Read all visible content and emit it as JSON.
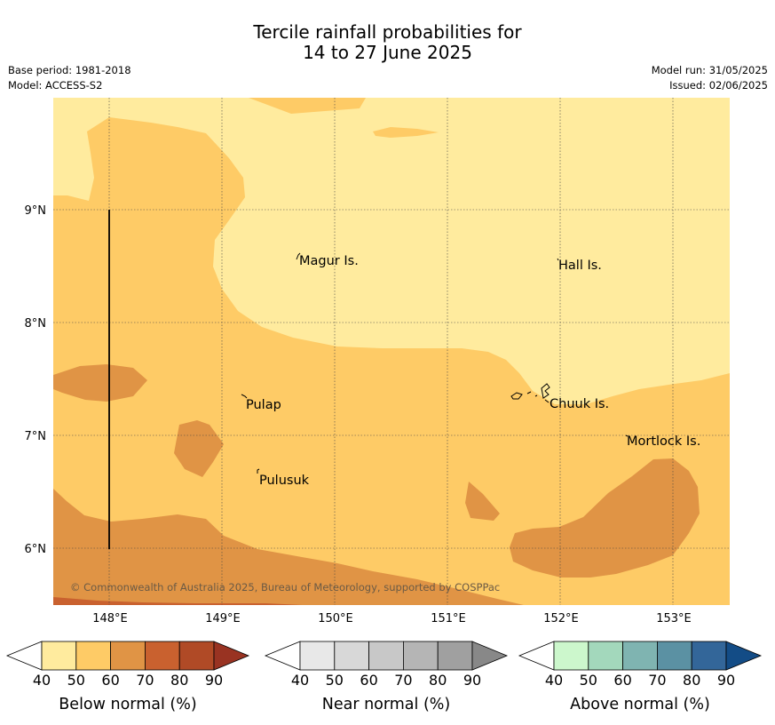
{
  "header": {
    "title_line1": "Tercile rainfall probabilities for",
    "title_line2": "14 to 27 June 2025",
    "base_period": "Base period: 1981-2018",
    "model": "Model: ACCESS-S2",
    "model_run": "Model run: 31/05/2025",
    "issued": "Issued: 02/06/2025"
  },
  "map": {
    "lat_labels": [
      "9°N",
      "8°N",
      "7°N",
      "6°N"
    ],
    "lon_labels": [
      "148°E",
      "149°E",
      "150°E",
      "151°E",
      "152°E",
      "153°E"
    ],
    "places": [
      {
        "name": "Magur Is."
      },
      {
        "name": "Hall Is."
      },
      {
        "name": "Pulap"
      },
      {
        "name": "Chuuk Is."
      },
      {
        "name": "Mortlock Is."
      },
      {
        "name": "Pulusuk"
      }
    ],
    "copyright": "© Commonwealth of Australia 2025, Bureau of Meteorology, supported by COSPPac",
    "colors": {
      "below_40_50": "#ffeb9e",
      "below_50_60": "#fecb66",
      "below_60_70": "#e09445",
      "below_70_80": "#c9612f",
      "below_80_90": "#b04a26",
      "below_90": "#993322"
    }
  },
  "legends": [
    {
      "title": "Below normal (%)",
      "ticks": [
        "40",
        "50",
        "60",
        "70",
        "80",
        "90"
      ],
      "colors": [
        "#ffffff",
        "#ffeb9e",
        "#fecb66",
        "#e09445",
        "#c9612f",
        "#b04a26",
        "#993322"
      ]
    },
    {
      "title": "Near normal (%)",
      "ticks": [
        "40",
        "50",
        "60",
        "70",
        "80",
        "90"
      ],
      "colors": [
        "#ffffff",
        "#e8e8e8",
        "#d8d8d8",
        "#c8c8c8",
        "#b5b5b5",
        "#a0a0a0",
        "#888888"
      ]
    },
    {
      "title": "Above normal (%)",
      "ticks": [
        "40",
        "50",
        "60",
        "70",
        "80",
        "90"
      ],
      "colors": [
        "#ffffff",
        "#ccf7cc",
        "#a3d8bc",
        "#7fb4b1",
        "#5b91a3",
        "#336699",
        "#134c86"
      ]
    }
  ]
}
